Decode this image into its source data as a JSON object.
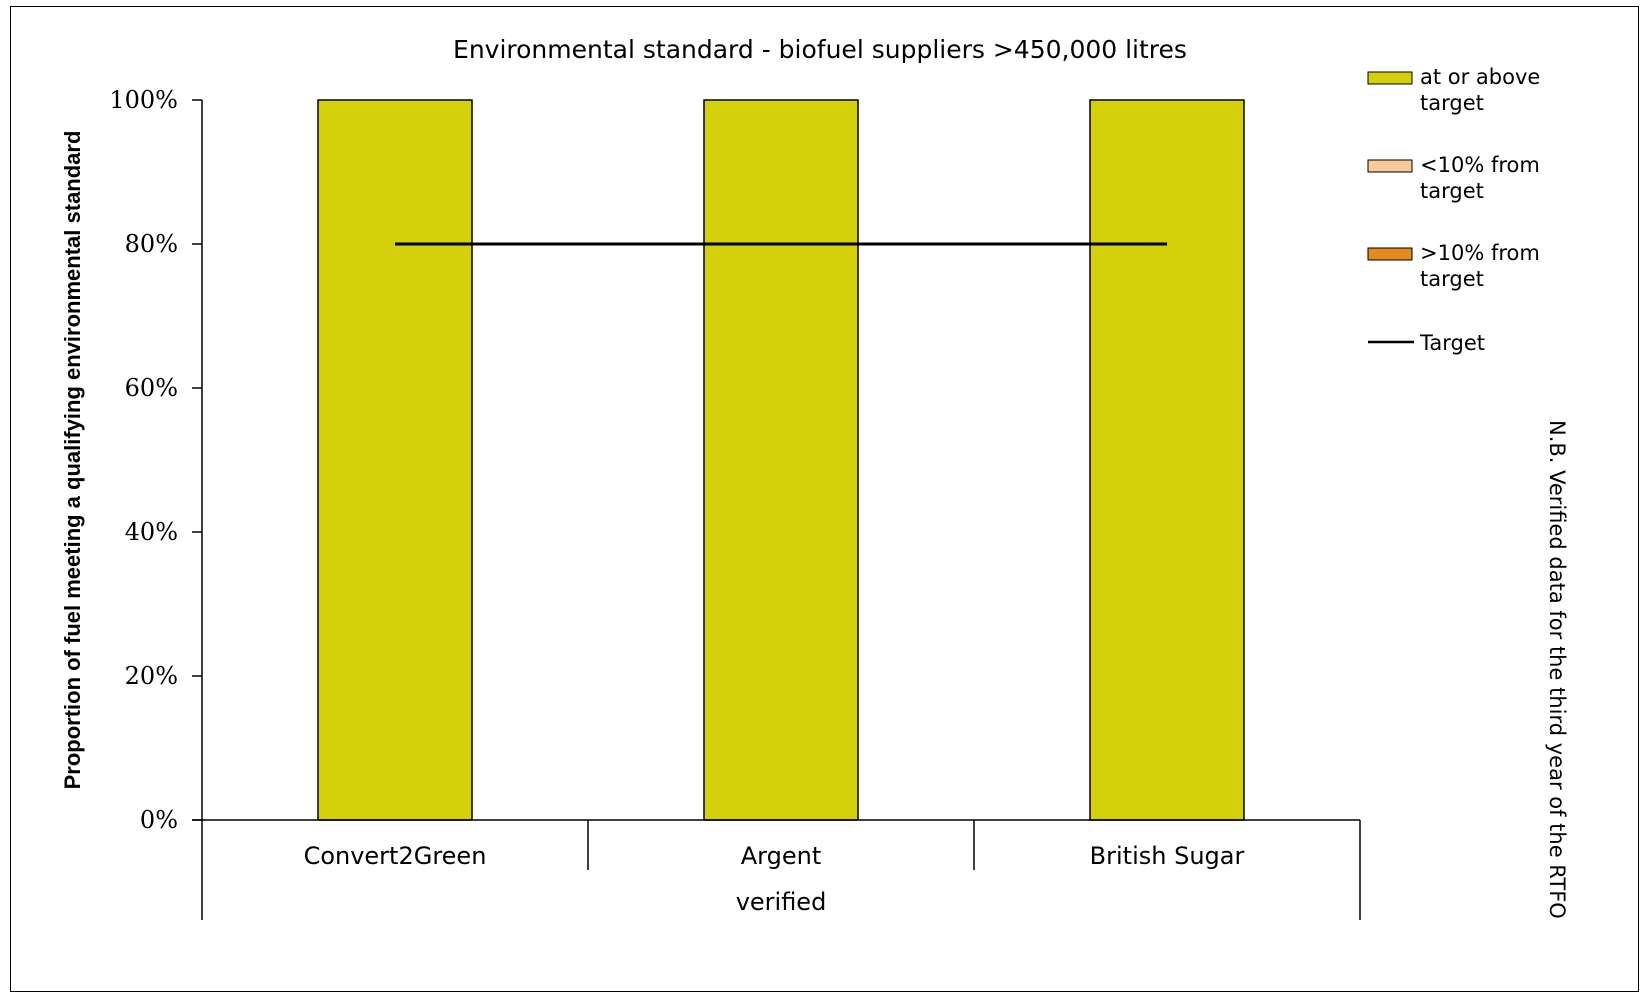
{
  "chart_data": {
    "type": "bar",
    "title": "Environmental standard - biofuel suppliers >450,000 litres",
    "ylabel": "Proportion of fuel meeting a qualifying environmental standard",
    "group_label": "verified",
    "categories": [
      "Convert2Green",
      "Argent",
      "British Sugar"
    ],
    "values": [
      1.0,
      1.0,
      1.0
    ],
    "target": [
      0.8,
      0.8,
      0.8
    ],
    "ylim": [
      0,
      1
    ],
    "yticks": [
      "0%",
      "20%",
      "40%",
      "60%",
      "80%",
      "100%"
    ],
    "grid": false,
    "legend_position": "right",
    "legend": [
      {
        "line1": "at or above",
        "line2": "target",
        "color": "#d4d00c",
        "kind": "box"
      },
      {
        "line1": "<10% from",
        "line2": "target",
        "color": "#f9c99a",
        "kind": "box"
      },
      {
        "line1": ">10% from",
        "line2": "target",
        "color": "#e58a1f",
        "kind": "box"
      },
      {
        "line1": "Target",
        "line2": "",
        "color": "#000000",
        "kind": "line"
      }
    ],
    "bar_color": "#d4d00c",
    "note": "N.B. Verified data for the third year of the RTFO"
  }
}
